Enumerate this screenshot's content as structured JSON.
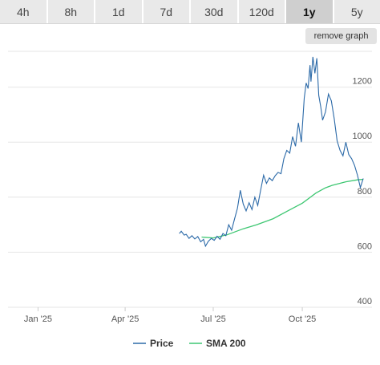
{
  "tabs": [
    {
      "label": "4h",
      "active": false
    },
    {
      "label": "8h",
      "active": false
    },
    {
      "label": "1d",
      "active": false
    },
    {
      "label": "7d",
      "active": false
    },
    {
      "label": "30d",
      "active": false
    },
    {
      "label": "120d",
      "active": false
    },
    {
      "label": "1y",
      "active": true
    },
    {
      "label": "5y",
      "active": false
    }
  ],
  "remove_graph_label": "remove graph",
  "colors": {
    "price": "#2c6aa8",
    "sma": "#3ec772",
    "grid": "#e6e6e6"
  },
  "chart_data": {
    "type": "line",
    "x_ticks": [
      "Jan '25",
      "Apr '25",
      "Jul '25",
      "Oct '25"
    ],
    "y_ticks": [
      400,
      600,
      800,
      1000,
      1200
    ],
    "ylim": [
      400,
      1330
    ],
    "xlim": [
      "2024-12-01",
      "2025-12-12"
    ],
    "legend": {
      "placement": "bottom-center"
    },
    "series": [
      {
        "name": "Price",
        "color": "#2c6aa8",
        "points": [
          [
            "2025-05-27",
            668
          ],
          [
            "2025-05-29",
            676
          ],
          [
            "2025-06-01",
            662
          ],
          [
            "2025-06-03",
            665
          ],
          [
            "2025-06-06",
            650
          ],
          [
            "2025-06-09",
            660
          ],
          [
            "2025-06-12",
            648
          ],
          [
            "2025-06-15",
            657
          ],
          [
            "2025-06-18",
            638
          ],
          [
            "2025-06-21",
            647
          ],
          [
            "2025-06-23",
            622
          ],
          [
            "2025-06-26",
            640
          ],
          [
            "2025-06-29",
            650
          ],
          [
            "2025-07-02",
            643
          ],
          [
            "2025-07-05",
            658
          ],
          [
            "2025-07-08",
            647
          ],
          [
            "2025-07-11",
            668
          ],
          [
            "2025-07-14",
            660
          ],
          [
            "2025-07-17",
            700
          ],
          [
            "2025-07-20",
            680
          ],
          [
            "2025-07-23",
            720
          ],
          [
            "2025-07-26",
            760
          ],
          [
            "2025-07-29",
            825
          ],
          [
            "2025-08-01",
            775
          ],
          [
            "2025-08-04",
            750
          ],
          [
            "2025-08-07",
            780
          ],
          [
            "2025-08-10",
            755
          ],
          [
            "2025-08-13",
            800
          ],
          [
            "2025-08-16",
            770
          ],
          [
            "2025-08-19",
            825
          ],
          [
            "2025-08-22",
            880
          ],
          [
            "2025-08-25",
            850
          ],
          [
            "2025-08-28",
            870
          ],
          [
            "2025-08-31",
            860
          ],
          [
            "2025-09-03",
            878
          ],
          [
            "2025-09-06",
            890
          ],
          [
            "2025-09-09",
            885
          ],
          [
            "2025-09-12",
            940
          ],
          [
            "2025-09-15",
            970
          ],
          [
            "2025-09-18",
            960
          ],
          [
            "2025-09-21",
            1020
          ],
          [
            "2025-09-24",
            985
          ],
          [
            "2025-09-27",
            1070
          ],
          [
            "2025-09-30",
            1000
          ],
          [
            "2025-10-03",
            1160
          ],
          [
            "2025-10-05",
            1215
          ],
          [
            "2025-10-07",
            1195
          ],
          [
            "2025-10-09",
            1280
          ],
          [
            "2025-10-10",
            1220
          ],
          [
            "2025-10-12",
            1310
          ],
          [
            "2025-10-14",
            1250
          ],
          [
            "2025-10-16",
            1305
          ],
          [
            "2025-10-18",
            1170
          ],
          [
            "2025-10-20",
            1130
          ],
          [
            "2025-10-22",
            1080
          ],
          [
            "2025-10-25",
            1110
          ],
          [
            "2025-10-28",
            1175
          ],
          [
            "2025-10-31",
            1150
          ],
          [
            "2025-11-03",
            1085
          ],
          [
            "2025-11-06",
            1005
          ],
          [
            "2025-11-09",
            970
          ],
          [
            "2025-11-12",
            950
          ],
          [
            "2025-11-15",
            1000
          ],
          [
            "2025-11-18",
            955
          ],
          [
            "2025-11-21",
            940
          ],
          [
            "2025-11-24",
            915
          ],
          [
            "2025-11-27",
            880
          ],
          [
            "2025-11-30",
            835
          ],
          [
            "2025-12-03",
            868
          ]
        ]
      },
      {
        "name": "SMA 200",
        "color": "#3ec772",
        "points": [
          [
            "2025-06-19",
            655
          ],
          [
            "2025-07-01",
            652
          ],
          [
            "2025-07-15",
            663
          ],
          [
            "2025-08-01",
            685
          ],
          [
            "2025-08-15",
            700
          ],
          [
            "2025-09-01",
            722
          ],
          [
            "2025-09-15",
            748
          ],
          [
            "2025-10-01",
            778
          ],
          [
            "2025-10-15",
            815
          ],
          [
            "2025-10-25",
            834
          ],
          [
            "2025-11-01",
            843
          ],
          [
            "2025-11-15",
            856
          ],
          [
            "2025-11-27",
            863
          ],
          [
            "2025-12-03",
            865
          ]
        ]
      }
    ]
  }
}
